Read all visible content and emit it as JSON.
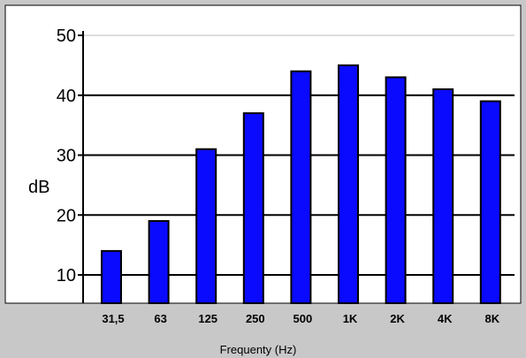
{
  "chart_data": {
    "type": "bar",
    "categories": [
      "31,5",
      "63",
      "125",
      "250",
      "500",
      "1K",
      "2K",
      "4K",
      "8K"
    ],
    "values": [
      14,
      19,
      31,
      37,
      44,
      45,
      43,
      41,
      39
    ],
    "title": "",
    "xlabel": "Frequenty (Hz)",
    "ylabel": "dB",
    "ylim": [
      5,
      50
    ],
    "yticks": [
      10,
      20,
      30,
      40,
      50
    ],
    "grid": true,
    "legend": "none",
    "colors": {
      "bar_fill": "#0a0aff",
      "bar_stroke": "#000000",
      "plot_background": "#ffffff",
      "frame_background": "#c8c8c8",
      "grid": "#000000"
    }
  }
}
